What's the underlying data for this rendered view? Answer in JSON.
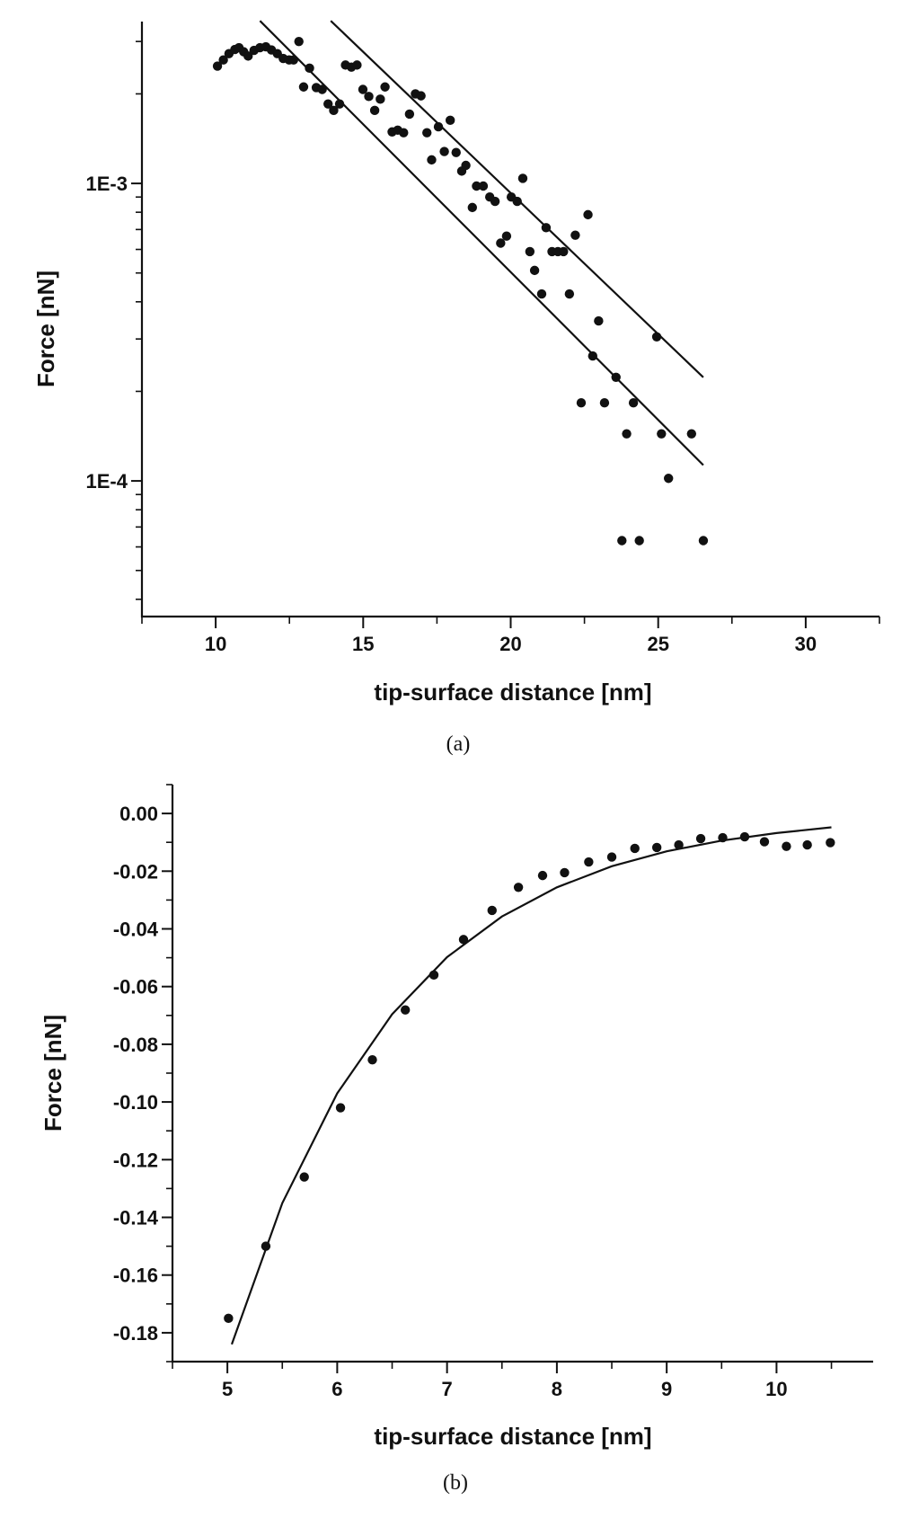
{
  "chart_data": [
    {
      "type": "scatter",
      "caption": "(a)",
      "xlabel": "tip-surface distance [nm]",
      "ylabel": "Force [nN]",
      "xlim": [
        7.5,
        32.5
      ],
      "ylim": [
        3.5e-05,
        0.0035
      ],
      "yscale": "log",
      "grid": false,
      "x_ticks": [
        10,
        15,
        20,
        25,
        30
      ],
      "x_tick_labels": [
        "10",
        "15",
        "20",
        "25",
        "30"
      ],
      "y_ticks": [
        0.001,
        0.0001
      ],
      "y_tick_labels": [
        "1E-3",
        "1E-4"
      ],
      "marker_color": "#111111",
      "points": {
        "x": [
          10.06,
          10.26,
          10.45,
          10.65,
          10.79,
          10.95,
          11.1,
          11.3,
          11.5,
          11.7,
          11.89,
          12.09,
          12.29,
          12.49,
          12.64,
          12.82,
          13.18,
          12.98,
          13.41,
          13.61,
          13.81,
          14.0,
          14.2,
          14.4,
          14.6,
          14.79,
          14.99,
          15.19,
          15.39,
          15.58,
          15.74,
          15.98,
          16.17,
          16.37,
          16.57,
          16.77,
          16.96,
          17.16,
          17.32,
          17.55,
          17.75,
          17.95,
          18.15,
          18.34,
          18.48,
          18.7,
          18.84,
          19.07,
          19.29,
          19.47,
          19.66,
          19.86,
          20.02,
          20.22,
          20.41,
          20.65,
          20.81,
          21.05,
          21.2,
          21.4,
          21.6,
          21.79,
          21.99,
          22.19,
          22.39,
          22.62,
          22.78,
          22.98,
          23.18,
          23.57,
          23.77,
          23.93,
          24.16,
          24.36,
          24.95,
          25.11,
          25.35,
          26.13,
          26.53
        ],
        "y": [
          0.00248,
          0.0026,
          0.00273,
          0.00282,
          0.00286,
          0.00277,
          0.00268,
          0.0028,
          0.00286,
          0.00288,
          0.00281,
          0.00273,
          0.00263,
          0.0026,
          0.0026,
          0.003,
          0.00244,
          0.00211,
          0.0021,
          0.00207,
          0.00185,
          0.00176,
          0.00185,
          0.0025,
          0.00246,
          0.0025,
          0.00207,
          0.00196,
          0.00176,
          0.00192,
          0.00211,
          0.00149,
          0.00151,
          0.00148,
          0.00171,
          0.002,
          0.00197,
          0.00148,
          0.0012,
          0.00155,
          0.00128,
          0.00163,
          0.00127,
          0.0011,
          0.00115,
          0.00083,
          0.00098,
          0.00098,
          0.0009,
          0.00087,
          0.00063,
          0.000665,
          0.0009,
          0.00087,
          0.00104,
          0.00059,
          0.00051,
          0.000425,
          0.00071,
          0.00059,
          0.00059,
          0.00059,
          0.000425,
          0.00067,
          0.000183,
          0.000785,
          0.000263,
          0.000345,
          0.000183,
          0.000223,
          6.3e-05,
          0.000144,
          0.000183,
          6.3e-05,
          0.000305,
          0.000144,
          0.000102,
          0.000144,
          6.3e-05
        ]
      },
      "fit_lines": [
        {
          "x": [
            11.5,
            26.53
          ],
          "y": [
            0.00352,
            0.000113
          ]
        },
        {
          "x": [
            13.9,
            26.53
          ],
          "y": [
            0.00352,
            0.000223
          ]
        }
      ]
    },
    {
      "type": "scatter",
      "caption": "(b)",
      "xlabel": "tip-surface distance [nm]",
      "ylabel": "Force [nN]",
      "xlim": [
        4.5,
        10.88
      ],
      "ylim": [
        -0.19,
        0.01
      ],
      "yscale": "linear",
      "grid": false,
      "x_ticks": [
        5,
        6,
        7,
        8,
        9,
        10
      ],
      "x_tick_labels": [
        "5",
        "6",
        "7",
        "8",
        "9",
        "10"
      ],
      "y_ticks": [
        0.0,
        -0.02,
        -0.04,
        -0.06,
        -0.08,
        -0.1,
        -0.12,
        -0.14,
        -0.16,
        -0.18
      ],
      "y_tick_labels": [
        "0.00",
        "-0.02",
        "-0.04",
        "-0.06",
        "-0.08",
        "-0.10",
        "-0.12",
        "-0.14",
        "-0.16",
        "-0.18"
      ],
      "marker_color": "#111111",
      "points": {
        "x": [
          5.01,
          5.35,
          5.7,
          6.03,
          6.32,
          6.62,
          6.88,
          7.15,
          7.41,
          7.65,
          7.87,
          8.07,
          8.29,
          8.5,
          8.71,
          8.91,
          9.11,
          9.31,
          9.51,
          9.71,
          9.89,
          10.09,
          10.28,
          10.49
        ],
        "y": [
          -0.175,
          -0.15,
          -0.126,
          -0.102,
          -0.0854,
          -0.0681,
          -0.056,
          -0.0437,
          -0.0336,
          -0.0256,
          -0.0215,
          -0.0205,
          -0.0168,
          -0.0151,
          -0.0121,
          -0.0118,
          -0.0109,
          -0.0087,
          -0.0084,
          -0.0081,
          -0.0098,
          -0.0114,
          -0.0109,
          -0.0101
        ]
      },
      "fit_lines": [
        {
          "x": [
            5.04,
            5.5,
            6,
            6.5,
            7,
            7.5,
            8,
            8.5,
            9,
            9.5,
            10,
            10.5
          ],
          "y": [
            -0.184,
            -0.135,
            -0.097,
            -0.0696,
            -0.0498,
            -0.0357,
            -0.0256,
            -0.0183,
            -0.0131,
            -0.0094,
            -0.0068,
            -0.0048
          ]
        }
      ]
    }
  ]
}
